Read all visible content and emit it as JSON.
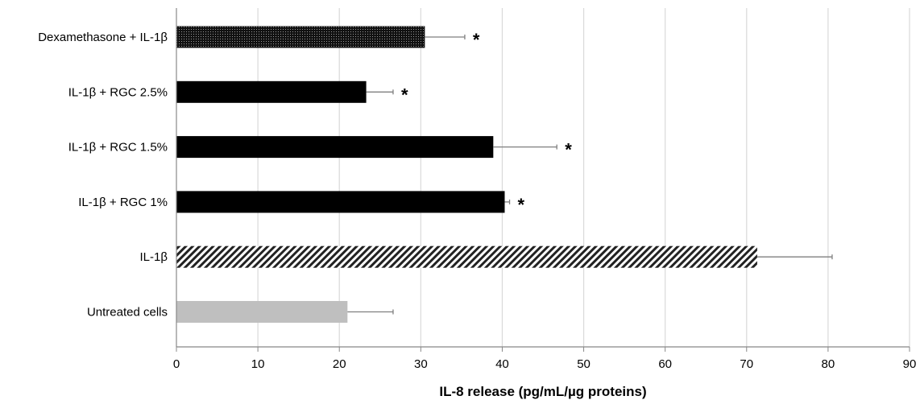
{
  "chart_data": {
    "type": "bar",
    "orientation": "horizontal",
    "xlabel": "IL-8 release (pg/mL/µg proteins)",
    "xlim": [
      0,
      90
    ],
    "xticks": [
      "0",
      "10",
      "20",
      "30",
      "40",
      "50",
      "60",
      "70",
      "80",
      "90"
    ],
    "grid": "vertical",
    "categories": [
      "Dexamethasone + IL-1β",
      "IL-1β + RGC 2.5%",
      "IL-1β + RGC 1.5%",
      "IL-1β + RGC 1%",
      "IL-1β",
      "Untreated cells"
    ],
    "values": [
      30.5,
      23.3,
      38.9,
      40.3,
      71.3,
      21.0
    ],
    "errors": [
      4.9,
      3.3,
      7.8,
      0.6,
      9.2,
      5.6
    ],
    "significance": [
      "*",
      "*",
      "*",
      "*",
      "",
      ""
    ],
    "fills": [
      "dotted",
      "black",
      "black",
      "black",
      "diagonal-hatch",
      "gray"
    ],
    "colors": {
      "black": "#000000",
      "gray": "#bfbfbf",
      "grid": "#d9d9d9",
      "error_bar": "#7f7f7f"
    }
  }
}
